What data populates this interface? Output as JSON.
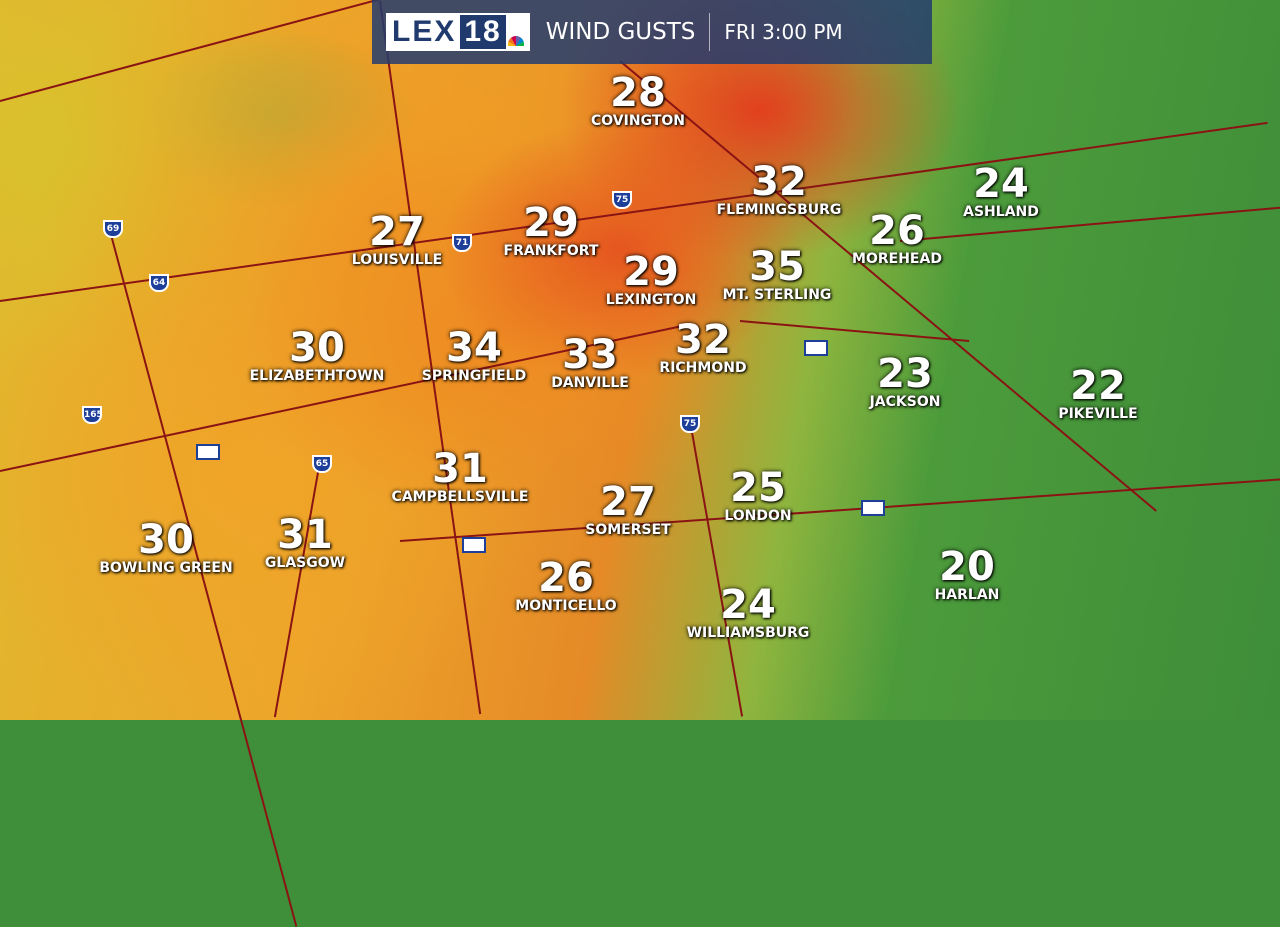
{
  "header": {
    "logo": "LEX18",
    "logo_text": "LEX",
    "logo_number": "18",
    "title": "WIND GUSTS",
    "time": "FRI 3:00 PM"
  },
  "units_note": "",
  "cities": [
    {
      "name": "COVINGTON",
      "gust": "28"
    },
    {
      "name": "FLEMINGSBURG",
      "gust": "32"
    },
    {
      "name": "ASHLAND",
      "gust": "24"
    },
    {
      "name": "LOUISVILLE",
      "gust": "27"
    },
    {
      "name": "FRANKFORT",
      "gust": "29"
    },
    {
      "name": "LEXINGTON",
      "gust": "29"
    },
    {
      "name": "MT. STERLING",
      "gust": "35"
    },
    {
      "name": "MOREHEAD",
      "gust": "26"
    },
    {
      "name": "ELIZABETHTOWN",
      "gust": "30"
    },
    {
      "name": "SPRINGFIELD",
      "gust": "34"
    },
    {
      "name": "DANVILLE",
      "gust": "33"
    },
    {
      "name": "RICHMOND",
      "gust": "32"
    },
    {
      "name": "JACKSON",
      "gust": "23"
    },
    {
      "name": "PIKEVILLE",
      "gust": "22"
    },
    {
      "name": "CAMPBELLSVILLE",
      "gust": "31"
    },
    {
      "name": "SOMERSET",
      "gust": "27"
    },
    {
      "name": "LONDON",
      "gust": "25"
    },
    {
      "name": "BOWLING GREEN",
      "gust": "30"
    },
    {
      "name": "GLASGOW",
      "gust": "31"
    },
    {
      "name": "MONTICELLO",
      "gust": "26"
    },
    {
      "name": "WILLIAMSBURG",
      "gust": "24"
    },
    {
      "name": "HARLAN",
      "gust": "20"
    }
  ],
  "interstates": [
    "69",
    "64",
    "71",
    "75",
    "75",
    "165",
    "65"
  ],
  "colors": {
    "high": "#e2401e",
    "mid": "#ef9a25",
    "low": "#3e8d39",
    "header_bg": "#233c6e"
  }
}
